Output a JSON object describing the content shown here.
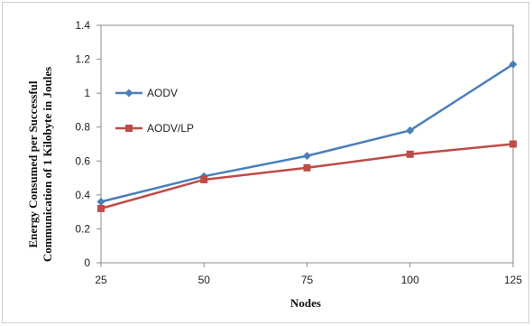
{
  "chart_data": {
    "type": "line",
    "title": "",
    "xlabel": "Nodes",
    "ylabel_line1": "Energy Consumed per Successful",
    "ylabel_line2": "Communication of 1 Kilobyte in Joules",
    "categories": [
      "25",
      "50",
      "75",
      "100",
      "125"
    ],
    "ylim": [
      0,
      1.4
    ],
    "yticks": [
      "0",
      "0.2",
      "0.4",
      "0.6",
      "0.8",
      "1",
      "1.2",
      "1.4"
    ],
    "grid": false,
    "legend_position": "left",
    "series": [
      {
        "name": "AODV",
        "values": [
          0.36,
          0.51,
          0.63,
          0.78,
          1.17
        ],
        "color": "#4a7ebb",
        "marker": "diamond"
      },
      {
        "name": "AODV/LP",
        "values": [
          0.32,
          0.49,
          0.56,
          0.64,
          0.7
        ],
        "color": "#be4b48",
        "marker": "square"
      }
    ]
  }
}
